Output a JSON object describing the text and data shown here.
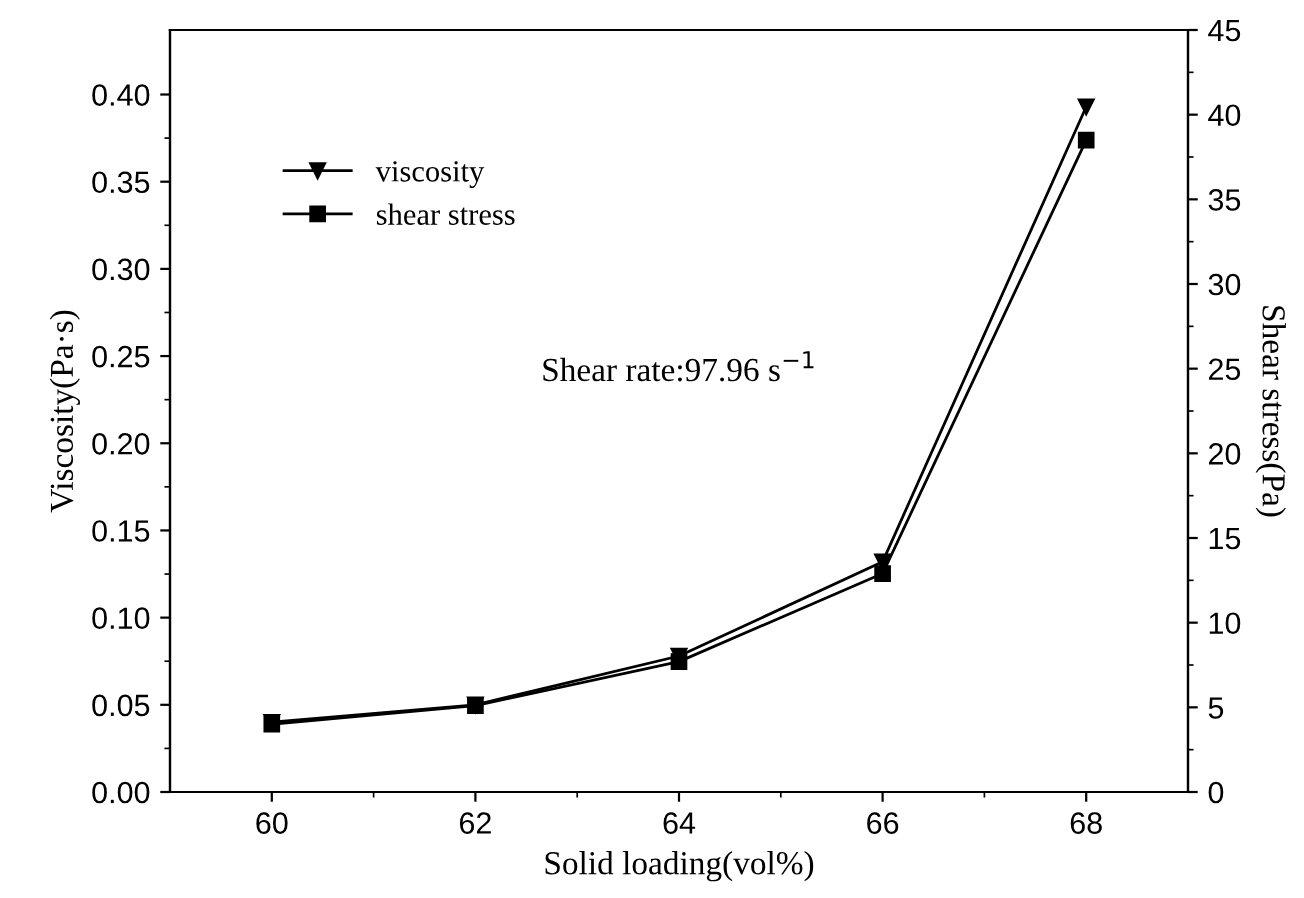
{
  "chart_data": {
    "type": "line",
    "xlabel": "Solid loading(vol%)",
    "ylabel": "Viscosity(Pa·s)",
    "y2label": "Shear stress(Pa)",
    "x": [
      60,
      62,
      64,
      66,
      68
    ],
    "series": [
      {
        "name": "viscosity",
        "color": "#000000",
        "marker": "triangle",
        "values": [
          0.04,
          0.05,
          0.078,
          0.132,
          0.393
        ]
      },
      {
        "name": "shear stress",
        "color": "#000000",
        "marker": "square",
        "axis": "y2",
        "values": [
          4.0,
          5.1,
          7.7,
          12.9,
          38.5
        ]
      }
    ],
    "xlim": [
      59,
      69
    ],
    "xticks": [
      60,
      62,
      64,
      66,
      68
    ],
    "ylim": [
      0,
      0.437
    ],
    "yticks": [
      {
        "value": 0,
        "label": "0.00"
      },
      {
        "value": 0.05,
        "label": "0.05"
      },
      {
        "value": 0.1,
        "label": "0.10"
      },
      {
        "value": 0.15,
        "label": "0.15"
      },
      {
        "value": 0.2,
        "label": "0.20"
      },
      {
        "value": 0.25,
        "label": "0.25"
      },
      {
        "value": 0.3,
        "label": "0.30"
      },
      {
        "value": 0.35,
        "label": "0.35"
      },
      {
        "value": 0.4,
        "label": "0.40"
      }
    ],
    "y2lim": [
      0,
      45
    ],
    "y2ticks": [
      0,
      5,
      10,
      15,
      20,
      25,
      30,
      35,
      40,
      45
    ],
    "annotations": [
      "Shear rate:97.96 s$^{−1}$"
    ],
    "legend": "top left",
    "grid": false,
    "line_style": "solid"
  }
}
